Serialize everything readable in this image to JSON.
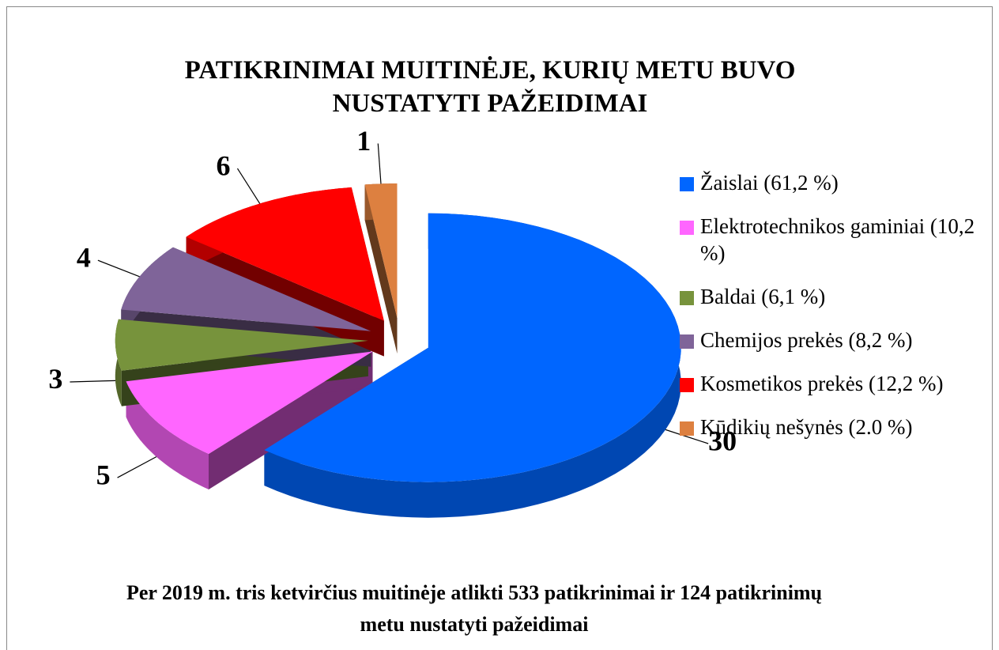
{
  "chart_data": {
    "type": "pie3d",
    "title": "PATIKRINIMAI MUITINĖJE, KURIŲ METU BUVO NUSTATYTI PAŽEIDIMAI",
    "caption": "Per 2019 m. tris ketvirčius muitinėje atlikti 533 patikrinimai ir 124 patikrinimų metu nustatyti pažeidimai",
    "categories": [
      "Žaislai (61,2 %)",
      "Elektrotechnikos gaminiai (10,2 %)",
      "Baldai (6,1 %)",
      "Chemijos prekės (8,2 %)",
      "Kosmetikos prekės (12,2 %)",
      "Kūdikių nešynės (2.0 %)"
    ],
    "values": [
      30,
      5,
      3,
      4,
      6,
      1
    ],
    "colors": [
      "#0066ff",
      "#ff66ff",
      "#77933c",
      "#7f6499",
      "#ff0000",
      "#dd8040"
    ],
    "legend": "right"
  }
}
